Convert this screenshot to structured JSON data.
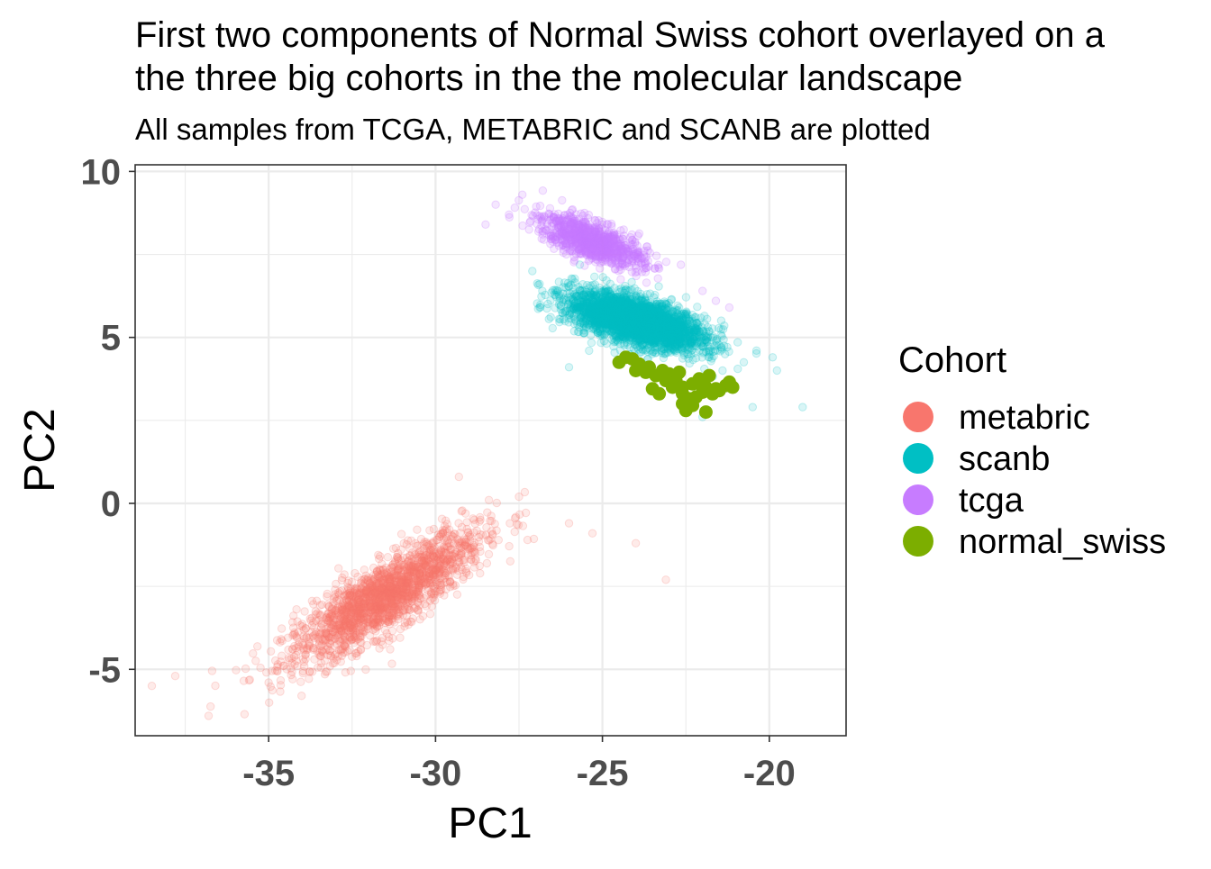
{
  "chart_data": {
    "type": "scatter",
    "title_lines": [
      "First two components of Normal Swiss cohort overlayed on a",
      "the three big cohorts in the the molecular landscape"
    ],
    "subtitle": "All samples from TCGA, METABRIC and SCANB are plotted",
    "xlabel": "PC1",
    "ylabel": "PC2",
    "xlim": [
      -39,
      -17.7
    ],
    "ylim": [
      -7,
      10.2
    ],
    "x_ticks": [
      -35,
      -30,
      -25,
      -20
    ],
    "x_tick_labels": [
      "-35",
      "-30",
      "-25",
      "-20"
    ],
    "y_ticks": [
      -5,
      0,
      5,
      10
    ],
    "y_tick_labels": [
      "-5",
      "0",
      "5",
      "10"
    ],
    "grid": true,
    "legend": {
      "title": "Cohort",
      "placement": "right"
    },
    "series": [
      {
        "name": "metabric",
        "color": "#F8766D",
        "opacity": 0.15,
        "cloud": {
          "n": 1900,
          "center": [
            -31.5,
            -2.8
          ],
          "slope": 0.65,
          "spread_major": 3.0,
          "spread_minor": 0.75
        },
        "points": [
          [
            -38.5,
            -5.5
          ],
          [
            -37.8,
            -5.2
          ],
          [
            -36.8,
            -6.4
          ],
          [
            -29.3,
            0.8
          ],
          [
            -27.5,
            0.2
          ],
          [
            -26.0,
            -0.6
          ],
          [
            -25.3,
            -0.9
          ],
          [
            -23.1,
            -2.3
          ],
          [
            -28.4,
            0.1
          ],
          [
            -24.0,
            -1.2
          ]
        ]
      },
      {
        "name": "scanb",
        "color": "#00BFC4",
        "opacity": 0.15,
        "cloud": {
          "n": 3000,
          "center": [
            -24.0,
            5.5
          ],
          "slope": -0.28,
          "spread_major": 1.9,
          "spread_minor": 0.55
        },
        "points": [
          [
            -27.1,
            7.0
          ],
          [
            -26.8,
            6.4
          ],
          [
            -19.9,
            4.4
          ],
          [
            -19.0,
            2.9
          ],
          [
            -20.5,
            2.9
          ],
          [
            -22.0,
            2.6
          ],
          [
            -25.4,
            4.6
          ],
          [
            -26.0,
            4.1
          ],
          [
            -21.4,
            4.0
          ]
        ]
      },
      {
        "name": "tcga",
        "color": "#C77CFF",
        "opacity": 0.18,
        "cloud": {
          "n": 900,
          "center": [
            -25.3,
            7.9
          ],
          "slope": -0.4,
          "spread_major": 1.5,
          "spread_minor": 0.45
        },
        "points": [
          [
            -28.2,
            9.0
          ],
          [
            -27.8,
            8.7
          ],
          [
            -27.4,
            9.3
          ],
          [
            -28.5,
            8.4
          ],
          [
            -22.0,
            6.4
          ],
          [
            -21.6,
            6.1
          ],
          [
            -21.2,
            5.9
          ]
        ]
      },
      {
        "name": "normal_swiss",
        "color": "#7CAE00",
        "opacity": 1,
        "cloud": null,
        "points": [
          [
            -24.5,
            4.25
          ],
          [
            -24.3,
            4.4
          ],
          [
            -24.1,
            4.35
          ],
          [
            -23.9,
            4.2
          ],
          [
            -24.0,
            4.0
          ],
          [
            -23.7,
            3.95
          ],
          [
            -23.4,
            3.85
          ],
          [
            -23.2,
            4.0
          ],
          [
            -23.0,
            3.9
          ],
          [
            -22.8,
            3.7
          ],
          [
            -22.6,
            3.5
          ],
          [
            -22.3,
            3.6
          ],
          [
            -22.1,
            3.75
          ],
          [
            -21.9,
            3.5
          ],
          [
            -21.6,
            3.45
          ],
          [
            -21.3,
            3.55
          ],
          [
            -21.2,
            3.65
          ],
          [
            -21.1,
            3.5
          ],
          [
            -22.6,
            3.3
          ],
          [
            -22.4,
            3.15
          ],
          [
            -22.2,
            3.2
          ],
          [
            -22.0,
            3.35
          ],
          [
            -21.7,
            3.3
          ],
          [
            -21.5,
            3.4
          ],
          [
            -22.9,
            3.5
          ],
          [
            -23.1,
            3.7
          ],
          [
            -23.5,
            3.45
          ],
          [
            -23.3,
            3.3
          ],
          [
            -22.6,
            3.0
          ],
          [
            -22.3,
            2.95
          ],
          [
            -21.9,
            2.75
          ],
          [
            -22.5,
            2.8
          ],
          [
            -23.6,
            4.1
          ],
          [
            -22.7,
            3.95
          ],
          [
            -22.0,
            3.6
          ],
          [
            -21.8,
            3.85
          ]
        ]
      }
    ]
  }
}
